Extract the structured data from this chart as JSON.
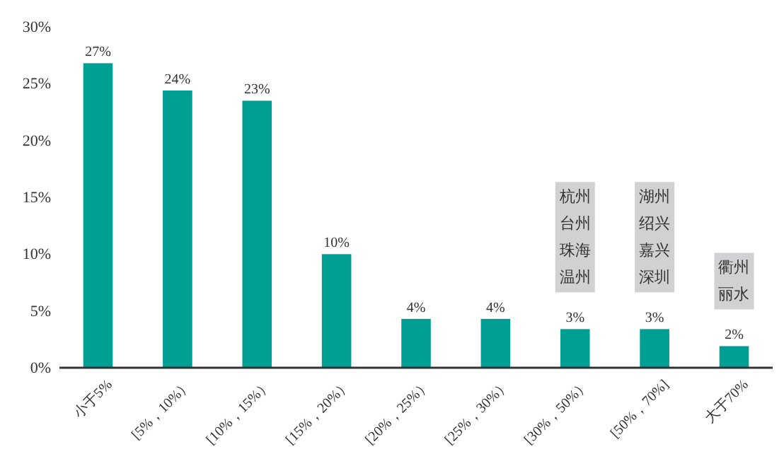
{
  "chart_data": {
    "type": "bar",
    "categories": [
      "小于5%",
      "[5%，10%）",
      "[10%，15%）",
      "[15%，20%）",
      "[20%，25%）",
      "[25%，30%）",
      "[30%，50%）",
      "[50%，70%]",
      "大于70%"
    ],
    "values": [
      26.8,
      24.4,
      23.5,
      10,
      4.3,
      4.3,
      3.4,
      3.4,
      1.9
    ],
    "value_labels": [
      "27%",
      "24%",
      "23%",
      "10%",
      "4%",
      "4%",
      "3%",
      "3%",
      "2%"
    ],
    "color": "#009e93",
    "ylim": [
      0,
      30
    ],
    "yticks": [
      {
        "value": 0,
        "label": "0%"
      },
      {
        "value": 5,
        "label": "5%"
      },
      {
        "value": 10,
        "label": "10%"
      },
      {
        "value": 15,
        "label": "15%"
      },
      {
        "value": 20,
        "label": "20%"
      },
      {
        "value": 25,
        "label": "25%"
      },
      {
        "value": 30,
        "label": "30%"
      }
    ],
    "grid": false,
    "annotations": [
      {
        "text": "杭州台州珠海温州",
        "x": "[30%，50%）",
        "y": 3.4
      },
      {
        "text": "湖州绍兴嘉兴深圳",
        "x": "[50%，70%]",
        "y": 3.4
      },
      {
        "text": "衢州丽水",
        "x": "大于70%",
        "y": 1.9
      }
    ]
  }
}
